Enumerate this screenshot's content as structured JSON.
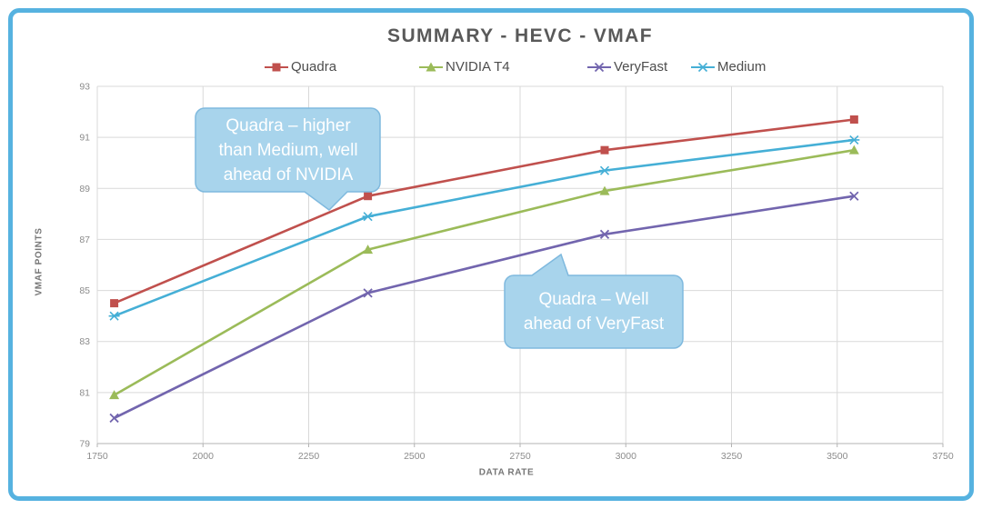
{
  "title": "SUMMARY - HEVC - VMAF",
  "colors": {
    "frame_border": "#56B2E0",
    "callout_fill": "#A8D4EC",
    "callout_border": "#7FB9DE",
    "grid": "#D9D9D9",
    "axis_line": "#B3B3B3",
    "tick_text": "#8c8c8c"
  },
  "chart_data": {
    "type": "line",
    "title": "SUMMARY - HEVC - VMAF",
    "xlabel": "DATA RATE",
    "ylabel": "VMAF POINTS",
    "xlim": [
      1750,
      3750
    ],
    "ylim": [
      79,
      93
    ],
    "x_ticks": [
      "1750",
      "2000",
      "2250",
      "2500",
      "2750",
      "3000",
      "3250",
      "3500",
      "3750"
    ],
    "y_ticks": [
      "79",
      "81",
      "83",
      "85",
      "87",
      "89",
      "91",
      "93"
    ],
    "grid": true,
    "legend_position": "top",
    "x": [
      1790,
      2390,
      2950,
      3540
    ],
    "series": [
      {
        "name": "Quadra",
        "color": "#C0504D",
        "marker": "square",
        "values": [
          84.5,
          88.7,
          90.5,
          91.7
        ]
      },
      {
        "name": "NVIDIA T4",
        "color": "#9BBB59",
        "marker": "triangle",
        "values": [
          80.9,
          86.6,
          88.9,
          90.5
        ]
      },
      {
        "name": "VeryFast",
        "color": "#7265AE",
        "marker": "x",
        "values": [
          80.0,
          84.9,
          87.2,
          88.7
        ]
      },
      {
        "name": "Medium",
        "color": "#45AFD6",
        "marker": "asterisk",
        "values": [
          84.0,
          87.9,
          89.7,
          90.9
        ]
      }
    ]
  },
  "annotations": [
    {
      "text": "Quadra – higher than Medium, well ahead of NVIDIA",
      "lines": [
        "Quadra – higher",
        "than Medium, well",
        "ahead of NVIDIA"
      ]
    },
    {
      "text": "Quadra – Well ahead of VeryFast",
      "lines": [
        "Quadra – Well",
        "ahead of VeryFast"
      ]
    }
  ]
}
